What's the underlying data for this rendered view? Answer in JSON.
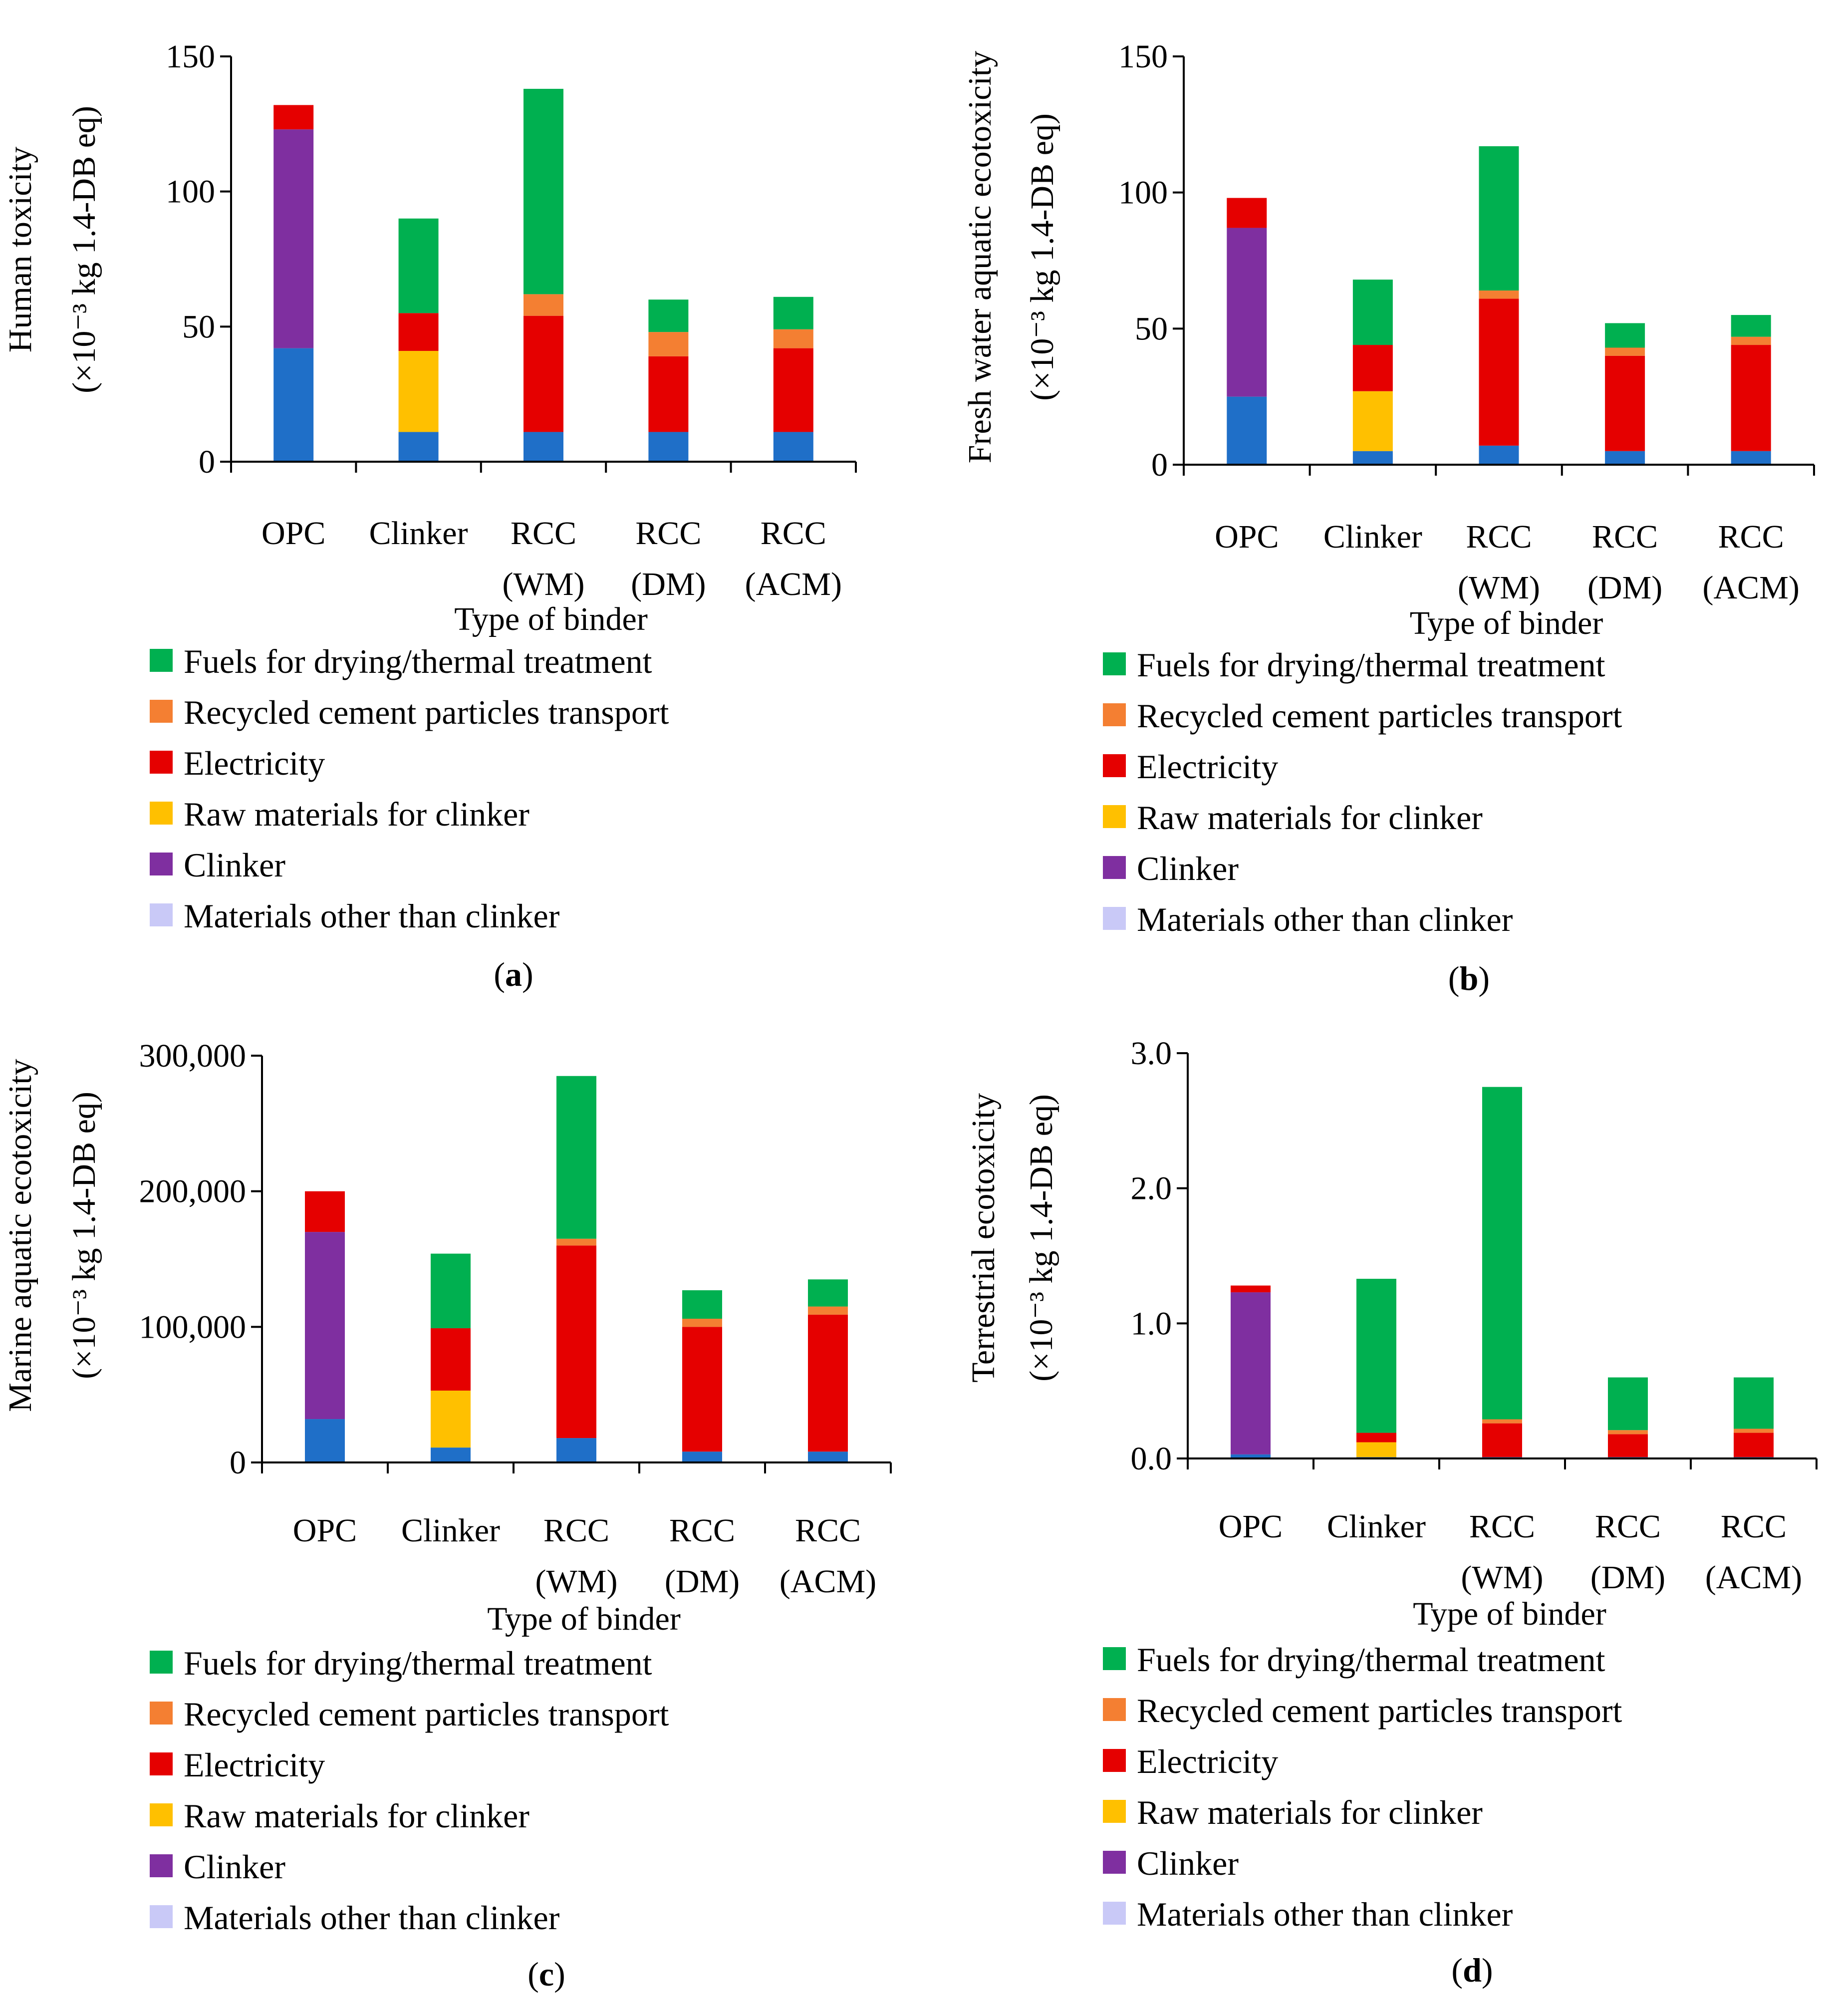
{
  "figure": {
    "categories": [
      [
        "OPC"
      ],
      [
        "Clinker"
      ],
      [
        "RCC",
        "(WM)"
      ],
      [
        "RCC",
        "(DM)"
      ],
      [
        "RCC",
        "(ACM)"
      ]
    ],
    "xlabel": "Type of binder",
    "legend": [
      {
        "label": "Fuels for drying/thermal treatment",
        "color": "#00b050"
      },
      {
        "label": "Recycled cement particles transport",
        "color": "#f47f32"
      },
      {
        "label": "Electricity",
        "color": "#e50000"
      },
      {
        "label": "Raw materials for clinker",
        "color": "#ffc000"
      },
      {
        "label": "Clinker",
        "color": "#7f2fa0"
      },
      {
        "label": "Materials other than clinker",
        "color": "#c9c9f7"
      }
    ],
    "base_series": {
      "name": "Base (unlabeled)",
      "color": "#1f6fc8"
    }
  },
  "chart_data": [
    {
      "type": "bar",
      "stacked": true,
      "panel_label": "a",
      "ylabel_lines": [
        "Human toxicity",
        "(×10⁻³ kg 1.4-DB eq)"
      ],
      "xlabel": "Type of binder",
      "ylim": [
        0,
        150
      ],
      "yticks": [
        0,
        50,
        100,
        150
      ],
      "ytick_labels": [
        "0",
        "50",
        "100",
        "150"
      ],
      "categories": [
        "OPC",
        "Clinker",
        "RCC (WM)",
        "RCC (DM)",
        "RCC (ACM)"
      ],
      "series": [
        {
          "name": "Base (unlabeled)",
          "values": [
            42,
            11,
            11,
            11,
            11
          ]
        },
        {
          "name": "Materials other than clinker",
          "values": [
            0,
            0,
            0,
            0,
            0
          ]
        },
        {
          "name": "Clinker",
          "values": [
            81,
            0,
            0,
            0,
            0
          ]
        },
        {
          "name": "Raw materials for clinker",
          "values": [
            0,
            30,
            0,
            0,
            0
          ]
        },
        {
          "name": "Electricity",
          "values": [
            9,
            14,
            43,
            28,
            31
          ]
        },
        {
          "name": "Recycled cement particles transport",
          "values": [
            0,
            0,
            8,
            9,
            7
          ]
        },
        {
          "name": "Fuels for drying/thermal treatment",
          "values": [
            0,
            35,
            76,
            12,
            12
          ]
        }
      ]
    },
    {
      "type": "bar",
      "stacked": true,
      "panel_label": "b",
      "ylabel_lines": [
        "Fresh water aquatic ecotoxicity",
        "(×10⁻³ kg 1.4-DB eq)"
      ],
      "xlabel": "Type of binder",
      "ylim": [
        0,
        150
      ],
      "yticks": [
        0,
        50,
        100,
        150
      ],
      "ytick_labels": [
        "0",
        "50",
        "100",
        "150"
      ],
      "categories": [
        "OPC",
        "Clinker",
        "RCC (WM)",
        "RCC (DM)",
        "RCC (ACM)"
      ],
      "series": [
        {
          "name": "Base (unlabeled)",
          "values": [
            25,
            5,
            7,
            5,
            5
          ]
        },
        {
          "name": "Materials other than clinker",
          "values": [
            0,
            0,
            0,
            0,
            0
          ]
        },
        {
          "name": "Clinker",
          "values": [
            62,
            0,
            0,
            0,
            0
          ]
        },
        {
          "name": "Raw materials for clinker",
          "values": [
            0,
            22,
            0,
            0,
            0
          ]
        },
        {
          "name": "Electricity",
          "values": [
            11,
            17,
            54,
            35,
            39
          ]
        },
        {
          "name": "Recycled cement particles transport",
          "values": [
            0,
            0,
            3,
            3,
            3
          ]
        },
        {
          "name": "Fuels for drying/thermal treatment",
          "values": [
            0,
            24,
            53,
            9,
            8
          ]
        }
      ]
    },
    {
      "type": "bar",
      "stacked": true,
      "panel_label": "c",
      "ylabel_lines": [
        "Marine aquatic ecotoxicity",
        "(×10⁻³ kg 1.4-DB eq)"
      ],
      "xlabel": "Type of binder",
      "ylim": [
        0,
        300000
      ],
      "yticks": [
        0,
        100000,
        200000,
        300000
      ],
      "ytick_labels": [
        "0",
        "100,000",
        "200,000",
        "300,000"
      ],
      "categories": [
        "OPC",
        "Clinker",
        "RCC (WM)",
        "RCC (DM)",
        "RCC (ACM)"
      ],
      "series": [
        {
          "name": "Base (unlabeled)",
          "values": [
            32000,
            11000,
            18000,
            8000,
            8000
          ]
        },
        {
          "name": "Materials other than clinker",
          "values": [
            0,
            0,
            0,
            0,
            0
          ]
        },
        {
          "name": "Clinker",
          "values": [
            138000,
            0,
            0,
            0,
            0
          ]
        },
        {
          "name": "Raw materials for clinker",
          "values": [
            0,
            42000,
            0,
            0,
            0
          ]
        },
        {
          "name": "Electricity",
          "values": [
            30000,
            46000,
            142000,
            92000,
            101000
          ]
        },
        {
          "name": "Recycled cement particles transport",
          "values": [
            0,
            0,
            5000,
            6000,
            6000
          ]
        },
        {
          "name": "Fuels for drying/thermal treatment",
          "values": [
            0,
            55000,
            120000,
            21000,
            20000
          ]
        }
      ]
    },
    {
      "type": "bar",
      "stacked": true,
      "panel_label": "d",
      "ylabel_lines": [
        "Terrestrial ecotoxicity",
        "(×10⁻³ kg 1.4-DB eq)"
      ],
      "xlabel": "Type of binder",
      "ylim": [
        0,
        3.0
      ],
      "yticks": [
        0,
        1,
        2,
        3
      ],
      "ytick_labels": [
        "0.0",
        "1.0",
        "2.0",
        "3.0"
      ],
      "categories": [
        "OPC",
        "Clinker",
        "RCC (WM)",
        "RCC (DM)",
        "RCC (ACM)"
      ],
      "series": [
        {
          "name": "Base (unlabeled)",
          "values": [
            0.03,
            0.01,
            0.01,
            0.01,
            0.01
          ]
        },
        {
          "name": "Materials other than clinker",
          "values": [
            0,
            0,
            0,
            0,
            0
          ]
        },
        {
          "name": "Clinker",
          "values": [
            1.2,
            0,
            0,
            0,
            0
          ]
        },
        {
          "name": "Raw materials for clinker",
          "values": [
            0,
            0.11,
            0,
            0,
            0
          ]
        },
        {
          "name": "Electricity",
          "values": [
            0.05,
            0.07,
            0.25,
            0.17,
            0.18
          ]
        },
        {
          "name": "Recycled cement particles transport",
          "values": [
            0,
            0,
            0.03,
            0.03,
            0.03
          ]
        },
        {
          "name": "Fuels for drying/thermal treatment",
          "values": [
            0,
            1.14,
            2.46,
            0.39,
            0.38
          ]
        }
      ]
    }
  ]
}
